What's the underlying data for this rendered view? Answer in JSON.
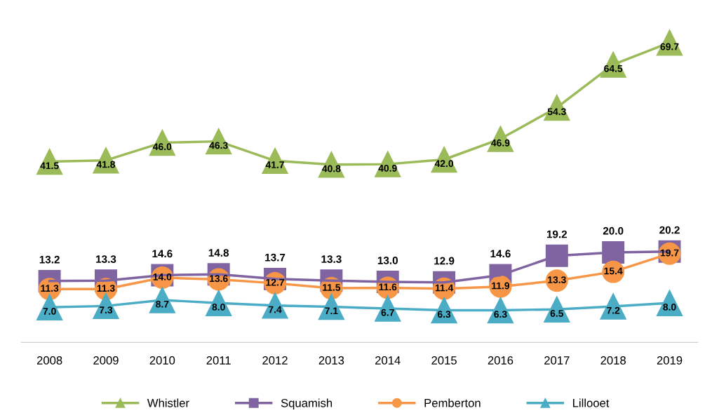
{
  "chart_data": {
    "type": "line",
    "categories": [
      "2008",
      "2009",
      "2010",
      "2011",
      "2012",
      "2013",
      "2014",
      "2015",
      "2016",
      "2017",
      "2018",
      "2019"
    ],
    "series": [
      {
        "name": "Whistler",
        "color": "#9bbb59",
        "marker": "triangle",
        "values": [
          41.5,
          41.8,
          46.0,
          46.3,
          41.7,
          40.8,
          40.9,
          42.0,
          46.9,
          54.3,
          64.5,
          69.7
        ],
        "value_labels": [
          "41.5",
          "41.8",
          "46.0",
          "46.3",
          "41.7",
          "40.8",
          "40.9",
          "42.0",
          "46.9",
          "54.3",
          "64.5",
          "69.7"
        ]
      },
      {
        "name": "Squamish",
        "color": "#8064a2",
        "marker": "square",
        "values": [
          13.2,
          13.3,
          14.6,
          14.8,
          13.7,
          13.3,
          13.0,
          12.9,
          14.6,
          19.2,
          20.0,
          20.2
        ],
        "value_labels": [
          "13.2",
          "13.3",
          "14.6",
          "14.8",
          "13.7",
          "13.3",
          "13.0",
          "12.9",
          "14.6",
          "19.2",
          "20.0",
          "20.2"
        ]
      },
      {
        "name": "Pemberton",
        "color": "#f79646",
        "marker": "circle",
        "values": [
          11.3,
          11.3,
          14.0,
          13.6,
          12.7,
          11.5,
          11.6,
          11.4,
          11.9,
          13.3,
          15.4,
          19.7
        ],
        "value_labels": [
          "11.3",
          "11.3",
          "14.0",
          "13.6",
          "12.7",
          "11.5",
          "11.6",
          "11.4",
          "11.9",
          "13.3",
          "15.4",
          "19.7"
        ]
      },
      {
        "name": "Lillooet",
        "color": "#4bacc6",
        "marker": "triangle",
        "values": [
          7.0,
          7.3,
          8.7,
          8.0,
          7.4,
          7.1,
          6.7,
          6.3,
          6.3,
          6.5,
          7.2,
          8.0
        ],
        "value_labels": [
          "7.0",
          "7.3",
          "8.7",
          "8.0",
          "7.4",
          "7.1",
          "6.7",
          "6.3",
          "6.3",
          "6.5",
          "7.2",
          "8.0"
        ]
      }
    ],
    "legend": "bottom",
    "tick_labels": "x",
    "line_style": "solid"
  }
}
